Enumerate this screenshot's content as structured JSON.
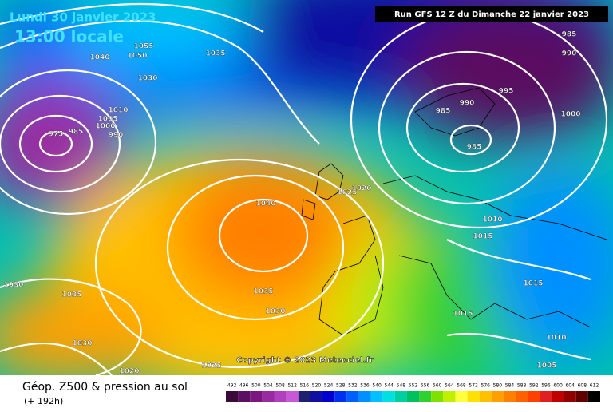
{
  "header": {
    "date": "Lundi 30 janvier 2023",
    "time": "13:00 locale",
    "run": "Run GFS 12 Z du Dimanche 22 janvier 2023"
  },
  "copyright": "Copyright © 2023 Meteociel.fr",
  "footer": {
    "title": "Géop. Z500 & pression au sol",
    "lead": "(+ 192h)"
  },
  "isobar_labels": [
    "1055",
    "1035",
    "1050",
    "1040",
    "1030",
    "1010",
    "1005",
    "1000",
    "990",
    "975",
    "985",
    "1040",
    "1035",
    "1030",
    "1025",
    "1020",
    "1030",
    "1035",
    "1030",
    "1020",
    "1025",
    "985",
    "990",
    "995",
    "990",
    "985",
    "1000",
    "985",
    "1010",
    "1015",
    "1015",
    "1015",
    "1010",
    "1005"
  ],
  "legend": {
    "values": [
      492,
      496,
      500,
      504,
      508,
      512,
      516,
      520,
      524,
      528,
      532,
      536,
      540,
      544,
      548,
      552,
      556,
      560,
      564,
      568,
      572,
      576,
      580,
      584,
      588,
      592,
      596,
      600,
      604,
      608,
      612
    ],
    "colors": [
      "#3a0a3a",
      "#5a1060",
      "#7a1880",
      "#9a2aa0",
      "#b040c0",
      "#c858d8",
      "#202070",
      "#1010a0",
      "#0000d0",
      "#0030f0",
      "#0060ff",
      "#0090ff",
      "#00c0ff",
      "#00e0e0",
      "#00d0a0",
      "#00c060",
      "#30d030",
      "#80e000",
      "#c0f000",
      "#ffff40",
      "#ffe000",
      "#ffc000",
      "#ffa000",
      "#ff8000",
      "#ff6000",
      "#ff4000",
      "#e02020",
      "#c00000",
      "#900000",
      "#600000",
      "#000000"
    ]
  }
}
